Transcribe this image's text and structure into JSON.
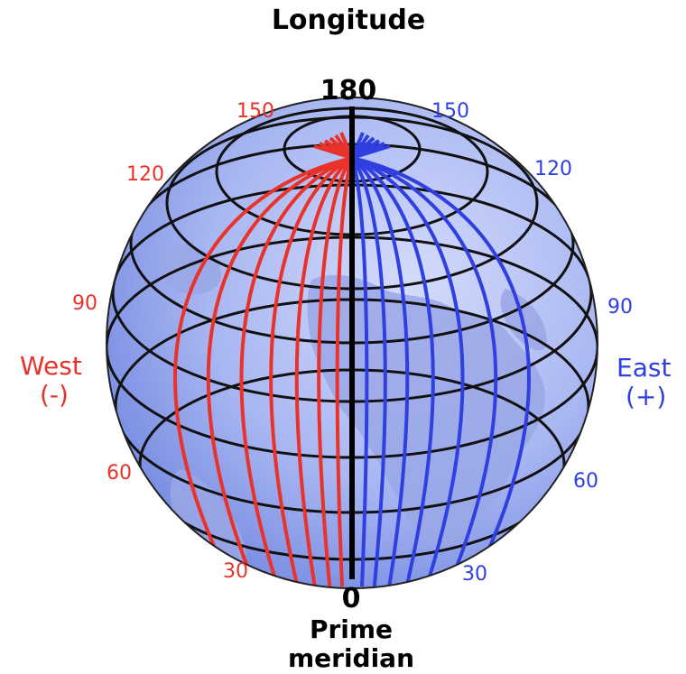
{
  "title": "Longitude",
  "top_label": "180",
  "bottom_label": "0",
  "prime_meridian": [
    "Prime",
    "meridian"
  ],
  "west": {
    "label": "West",
    "sign": "(-)",
    "color": "#e8322a",
    "ticks": [
      "150",
      "120",
      "90",
      "60",
      "30"
    ]
  },
  "east": {
    "label": "East",
    "sign": "(+)",
    "color": "#2f3fe0",
    "ticks": [
      "150",
      "120",
      "90",
      "60",
      "30"
    ]
  },
  "colors": {
    "globe_dark": "#6f86e0",
    "globe_light": "#c7d1f7",
    "land": "#a3aee8",
    "grid": "#111111"
  }
}
